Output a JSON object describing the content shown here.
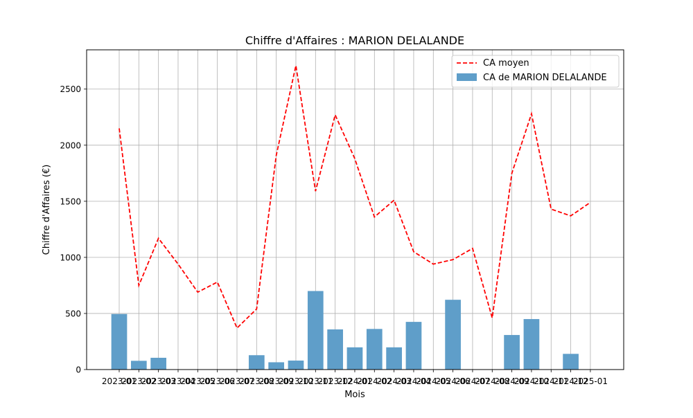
{
  "chart_data": {
    "type": "bar",
    "title": "Chiffre d'Affaires : MARION DELALANDE",
    "xlabel": "Mois",
    "ylabel": "Chiffre d'Affaires (€)",
    "ylim": [
      0,
      2850
    ],
    "yticks": [
      0,
      500,
      1000,
      1500,
      2000,
      2500
    ],
    "grid": true,
    "legend_position": "top-right",
    "categories": [
      "2023-01",
      "2023-02",
      "2023-03",
      "2023-04",
      "2023-05",
      "2023-06",
      "2023-07",
      "2023-08",
      "2023-09",
      "2023-10",
      "2023-11",
      "2023-12",
      "2024-01",
      "2024-02",
      "2024-03",
      "2024-04",
      "2024-05",
      "2024-06",
      "2024-07",
      "2024-08",
      "2024-09",
      "2024-10",
      "2024-11",
      "2024-12",
      "2025-01"
    ],
    "series": [
      {
        "name": "CA moyen",
        "kind": "line",
        "style": "dashed",
        "color": "#ff0000",
        "values": [
          2150,
          750,
          1170,
          940,
          690,
          780,
          370,
          540,
          1910,
          2710,
          1590,
          2270,
          1880,
          1360,
          1510,
          1050,
          940,
          980,
          1080,
          460,
          1750,
          2280,
          1430,
          1370,
          1490
        ]
      },
      {
        "name": "CA de MARION DELALANDE",
        "kind": "bar",
        "color": "#5f9ec9",
        "values": [
          495,
          78,
          105,
          null,
          null,
          null,
          null,
          128,
          65,
          80,
          700,
          358,
          198,
          362,
          198,
          425,
          null,
          622,
          null,
          null,
          308,
          450,
          null,
          140,
          null
        ]
      }
    ]
  }
}
